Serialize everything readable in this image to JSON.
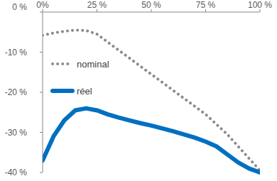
{
  "chart_data": {
    "type": "line",
    "x": [
      0,
      5,
      10,
      15,
      20,
      25,
      30,
      35,
      40,
      45,
      50,
      55,
      60,
      65,
      70,
      75,
      80,
      85,
      90,
      95,
      100
    ],
    "xlim": [
      0,
      100
    ],
    "xticks": [
      {
        "value": 0,
        "label": "0%"
      },
      {
        "value": 25,
        "label": "25 %"
      },
      {
        "value": 50,
        "label": "50 %"
      },
      {
        "value": 75,
        "label": "75 %"
      },
      {
        "value": 100,
        "label": "100 %"
      }
    ],
    "ylim": [
      -40,
      0
    ],
    "yticks": [
      {
        "value": -40,
        "label": "-40 %"
      },
      {
        "value": -30,
        "label": "-30 %"
      },
      {
        "value": -20,
        "label": "-20 %"
      },
      {
        "value": -10,
        "label": "-10 %"
      },
      {
        "value": 0,
        "label": "0 %"
      }
    ],
    "grid": false,
    "legend": "upper left",
    "series": [
      {
        "name": "nominal",
        "color": "#8c8c8c",
        "line_style": "dotted",
        "values": [
          -5.8,
          -5.2,
          -4.8,
          -4.5,
          -4.6,
          -5.5,
          -7.5,
          -9.5,
          -11.5,
          -13.5,
          -15.5,
          -17.5,
          -19.5,
          -21.5,
          -23.5,
          -25.5,
          -28,
          -30.5,
          -33.5,
          -36.5,
          -39.5
        ]
      },
      {
        "name": "réel",
        "color": "#0070c0",
        "line_style": "solid",
        "values": [
          -37,
          -31,
          -27,
          -24.5,
          -24,
          -24.5,
          -25.5,
          -26.3,
          -27,
          -27.7,
          -28.3,
          -29,
          -29.7,
          -30.5,
          -31.3,
          -32.3,
          -33.5,
          -35.5,
          -37.5,
          -39,
          -40
        ]
      }
    ]
  }
}
